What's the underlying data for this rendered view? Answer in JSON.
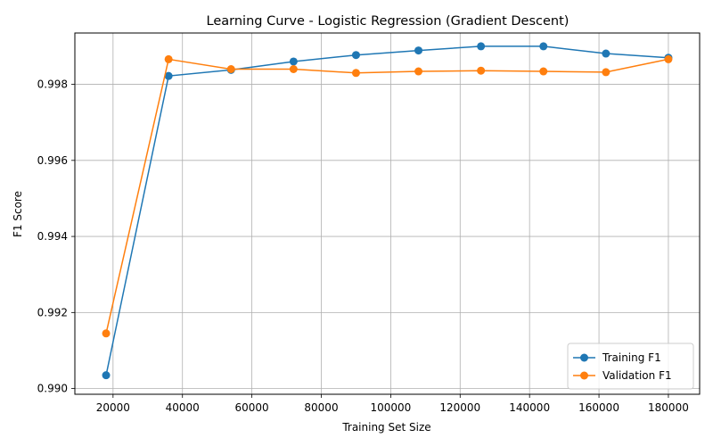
{
  "chart_data": {
    "type": "line",
    "title": "Learning Curve - Logistic Regression  (Gradient Descent)",
    "xlabel": "Training Set Size",
    "ylabel": "F1 Score",
    "xlim": [
      9000,
      189000
    ],
    "ylim": [
      0.98985,
      0.99935
    ],
    "xticks": [
      20000,
      40000,
      60000,
      80000,
      100000,
      120000,
      140000,
      160000,
      180000
    ],
    "yticks": [
      0.99,
      0.992,
      0.994,
      0.996,
      0.998
    ],
    "ytick_labels": [
      "0.990",
      "0.992",
      "0.994",
      "0.996",
      "0.998"
    ],
    "grid": true,
    "legend_position": "bottom-right",
    "x": [
      18000,
      36000,
      54000,
      72000,
      90000,
      108000,
      126000,
      144000,
      162000,
      180000
    ],
    "series": [
      {
        "name": "Training F1",
        "color": "#1f77b4",
        "values": [
          0.99035,
          0.99822,
          0.99838,
          0.9986,
          0.99877,
          0.99889,
          0.999,
          0.999,
          0.99881,
          0.9987
        ]
      },
      {
        "name": "Validation F1",
        "color": "#ff7f0e",
        "values": [
          0.99145,
          0.99866,
          0.9984,
          0.9984,
          0.9983,
          0.99834,
          0.99836,
          0.99834,
          0.99832,
          0.99866
        ]
      }
    ]
  }
}
